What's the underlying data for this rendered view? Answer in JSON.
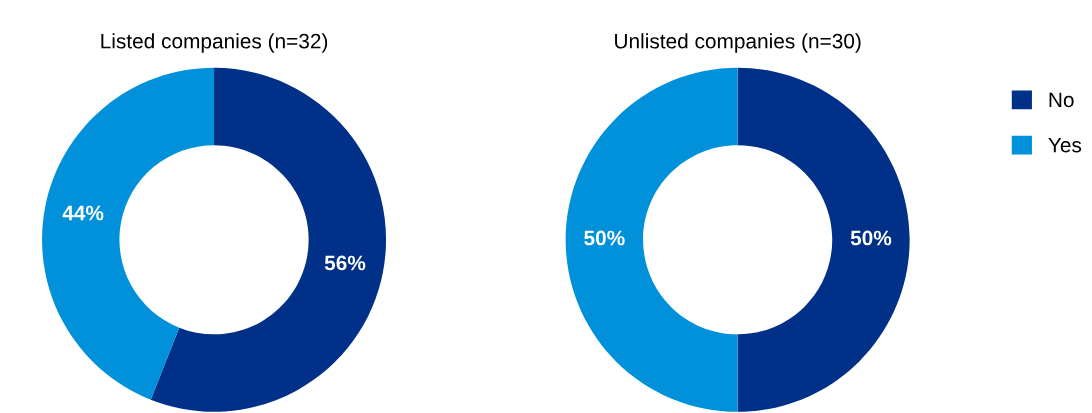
{
  "chart_data": [
    {
      "type": "donut",
      "title": "Listed companies (n=32)",
      "categories": [
        "No",
        "Yes"
      ],
      "values": [
        56,
        44
      ],
      "colors": [
        "#003087",
        "#0091da"
      ],
      "value_labels": [
        "56%",
        "44%"
      ],
      "legend": "right"
    },
    {
      "type": "donut",
      "title": "Unlisted companies (n=30)",
      "categories": [
        null,
        null
      ],
      "values": [
        50,
        50
      ],
      "colors": [
        "#003087",
        "#0091da"
      ],
      "value_labels": [
        "50%",
        "50%"
      ]
    }
  ]
}
